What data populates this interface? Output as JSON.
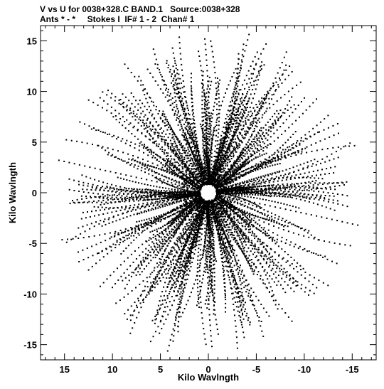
{
  "header": {
    "line1": "V vs U for 0038+328.C BAND.1   Source:0038+328",
    "line2": "Ants * - *     Stokes I  IF# 1 - 2  Chan# 1"
  },
  "chart_data": {
    "type": "scatter",
    "title": "V vs U for 0038+328.C BAND.1   Source:0038+328",
    "subtitle": "Ants * - *     Stokes I  IF# 1 - 2  Chan# 1",
    "xlabel": "Kilo Wavlngth",
    "ylabel": "Kilo Wavlngth",
    "xlim": [
      17.5,
      -17.5
    ],
    "ylim": [
      -16.5,
      16.5
    ],
    "x_reversed": true,
    "x_ticks": [
      15,
      10,
      5,
      0,
      -5,
      -10,
      -15
    ],
    "x_tick_labels": [
      "15",
      "10",
      "5",
      "0",
      "-5",
      "-10",
      "-15"
    ],
    "y_ticks": [
      15,
      10,
      5,
      0,
      -5,
      -10,
      -15
    ],
    "y_tick_labels": [
      "15",
      "10",
      "5",
      "0",
      "-5",
      "-10",
      "-15"
    ],
    "grid": false,
    "legend": "none",
    "marker_color": "#000000",
    "coverage": {
      "max_radius": 16.5,
      "n_baselines": 160,
      "n_samples_per_baseline": 28,
      "center_hole_radius": 0.8
    }
  }
}
